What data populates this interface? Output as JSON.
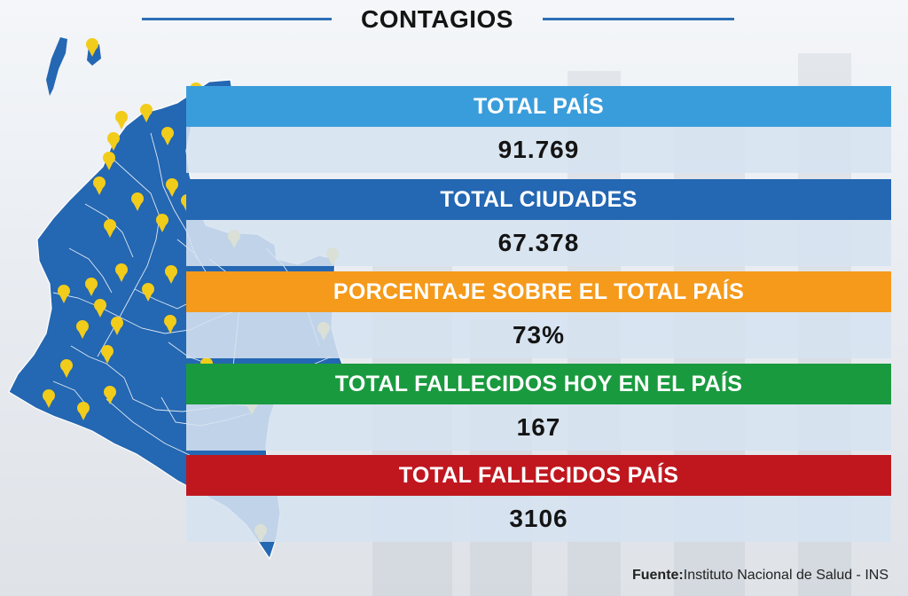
{
  "header": {
    "title": "CONTAGIOS"
  },
  "stats": [
    {
      "label": "TOTAL PAÍS",
      "value": "91.769",
      "color": "#3a9ddb"
    },
    {
      "label": "TOTAL CIUDADES",
      "value": "67.378",
      "color": "#2467b2"
    },
    {
      "label": "PORCENTAJE SOBRE EL TOTAL PAÍS",
      "value": "73%",
      "color": "#f59a1b"
    },
    {
      "label": "TOTAL FALLECIDOS HOY EN EL PAÍS",
      "value": "167",
      "color": "#1a9a3f"
    },
    {
      "label": "TOTAL FALLECIDOS PAÍS",
      "value": "3106",
      "color": "#c0171f"
    }
  ],
  "footer": {
    "source_label": "Fuente:",
    "source_text": "Instituto Nacional de Salud - INS"
  },
  "map": {
    "fill_color": "#2467b2",
    "pin_color": "#f2cc1a",
    "pin_icon": "map-pin-icon"
  }
}
